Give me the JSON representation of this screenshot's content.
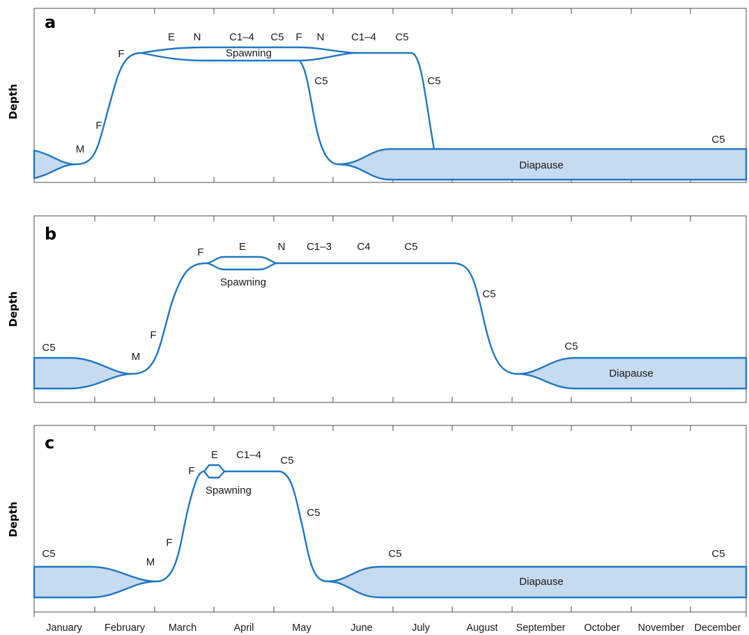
{
  "y_axis_label": "Depth",
  "months": [
    "January",
    "February",
    "March",
    "April",
    "May",
    "June",
    "July",
    "August",
    "September",
    "October",
    "November",
    "December"
  ],
  "colors": {
    "line": "#1f77c4",
    "band_fill": "#c6daf0",
    "frame": "#4d4d4d"
  },
  "panels": [
    {
      "letter": "a",
      "labels": {
        "stage_e": "E",
        "stage_n": "N",
        "stage_c14": "C1–4",
        "stage_c5_top": "C5",
        "stage_f_top": "F",
        "stage_n2": "N",
        "stage_c14_2": "C1–4",
        "stage_c5_top2": "C5",
        "spawning": "Spawning",
        "stage_f_peak": "F",
        "stage_f_rise": "F",
        "stage_m": "M",
        "c5_descent_1": "C5",
        "c5_descent_2": "C5",
        "c5_end": "C5",
        "diapause": "Diapause"
      }
    },
    {
      "letter": "b",
      "labels": {
        "stage_e": "E",
        "stage_n": "N",
        "stage_c13": "C1–3",
        "stage_c4": "C4",
        "stage_c5_top": "C5",
        "stage_f_peak": "F",
        "spawning": "Spawning",
        "stage_f_rise": "F",
        "stage_m": "M",
        "c5_start": "C5",
        "c5_descent": "C5",
        "c5_diapause": "C5",
        "diapause": "Diapause"
      }
    },
    {
      "letter": "c",
      "labels": {
        "stage_e": "E",
        "stage_c14": "C1–4",
        "stage_c5_top": "C5",
        "stage_f_peak": "F",
        "spawning": "Spawning",
        "c5_descent": "C5",
        "stage_f_rise": "F",
        "stage_m": "M",
        "c5_start": "C5",
        "c5_diapause": "C5",
        "c5_end": "C5",
        "diapause": "Diapause"
      }
    }
  ]
}
